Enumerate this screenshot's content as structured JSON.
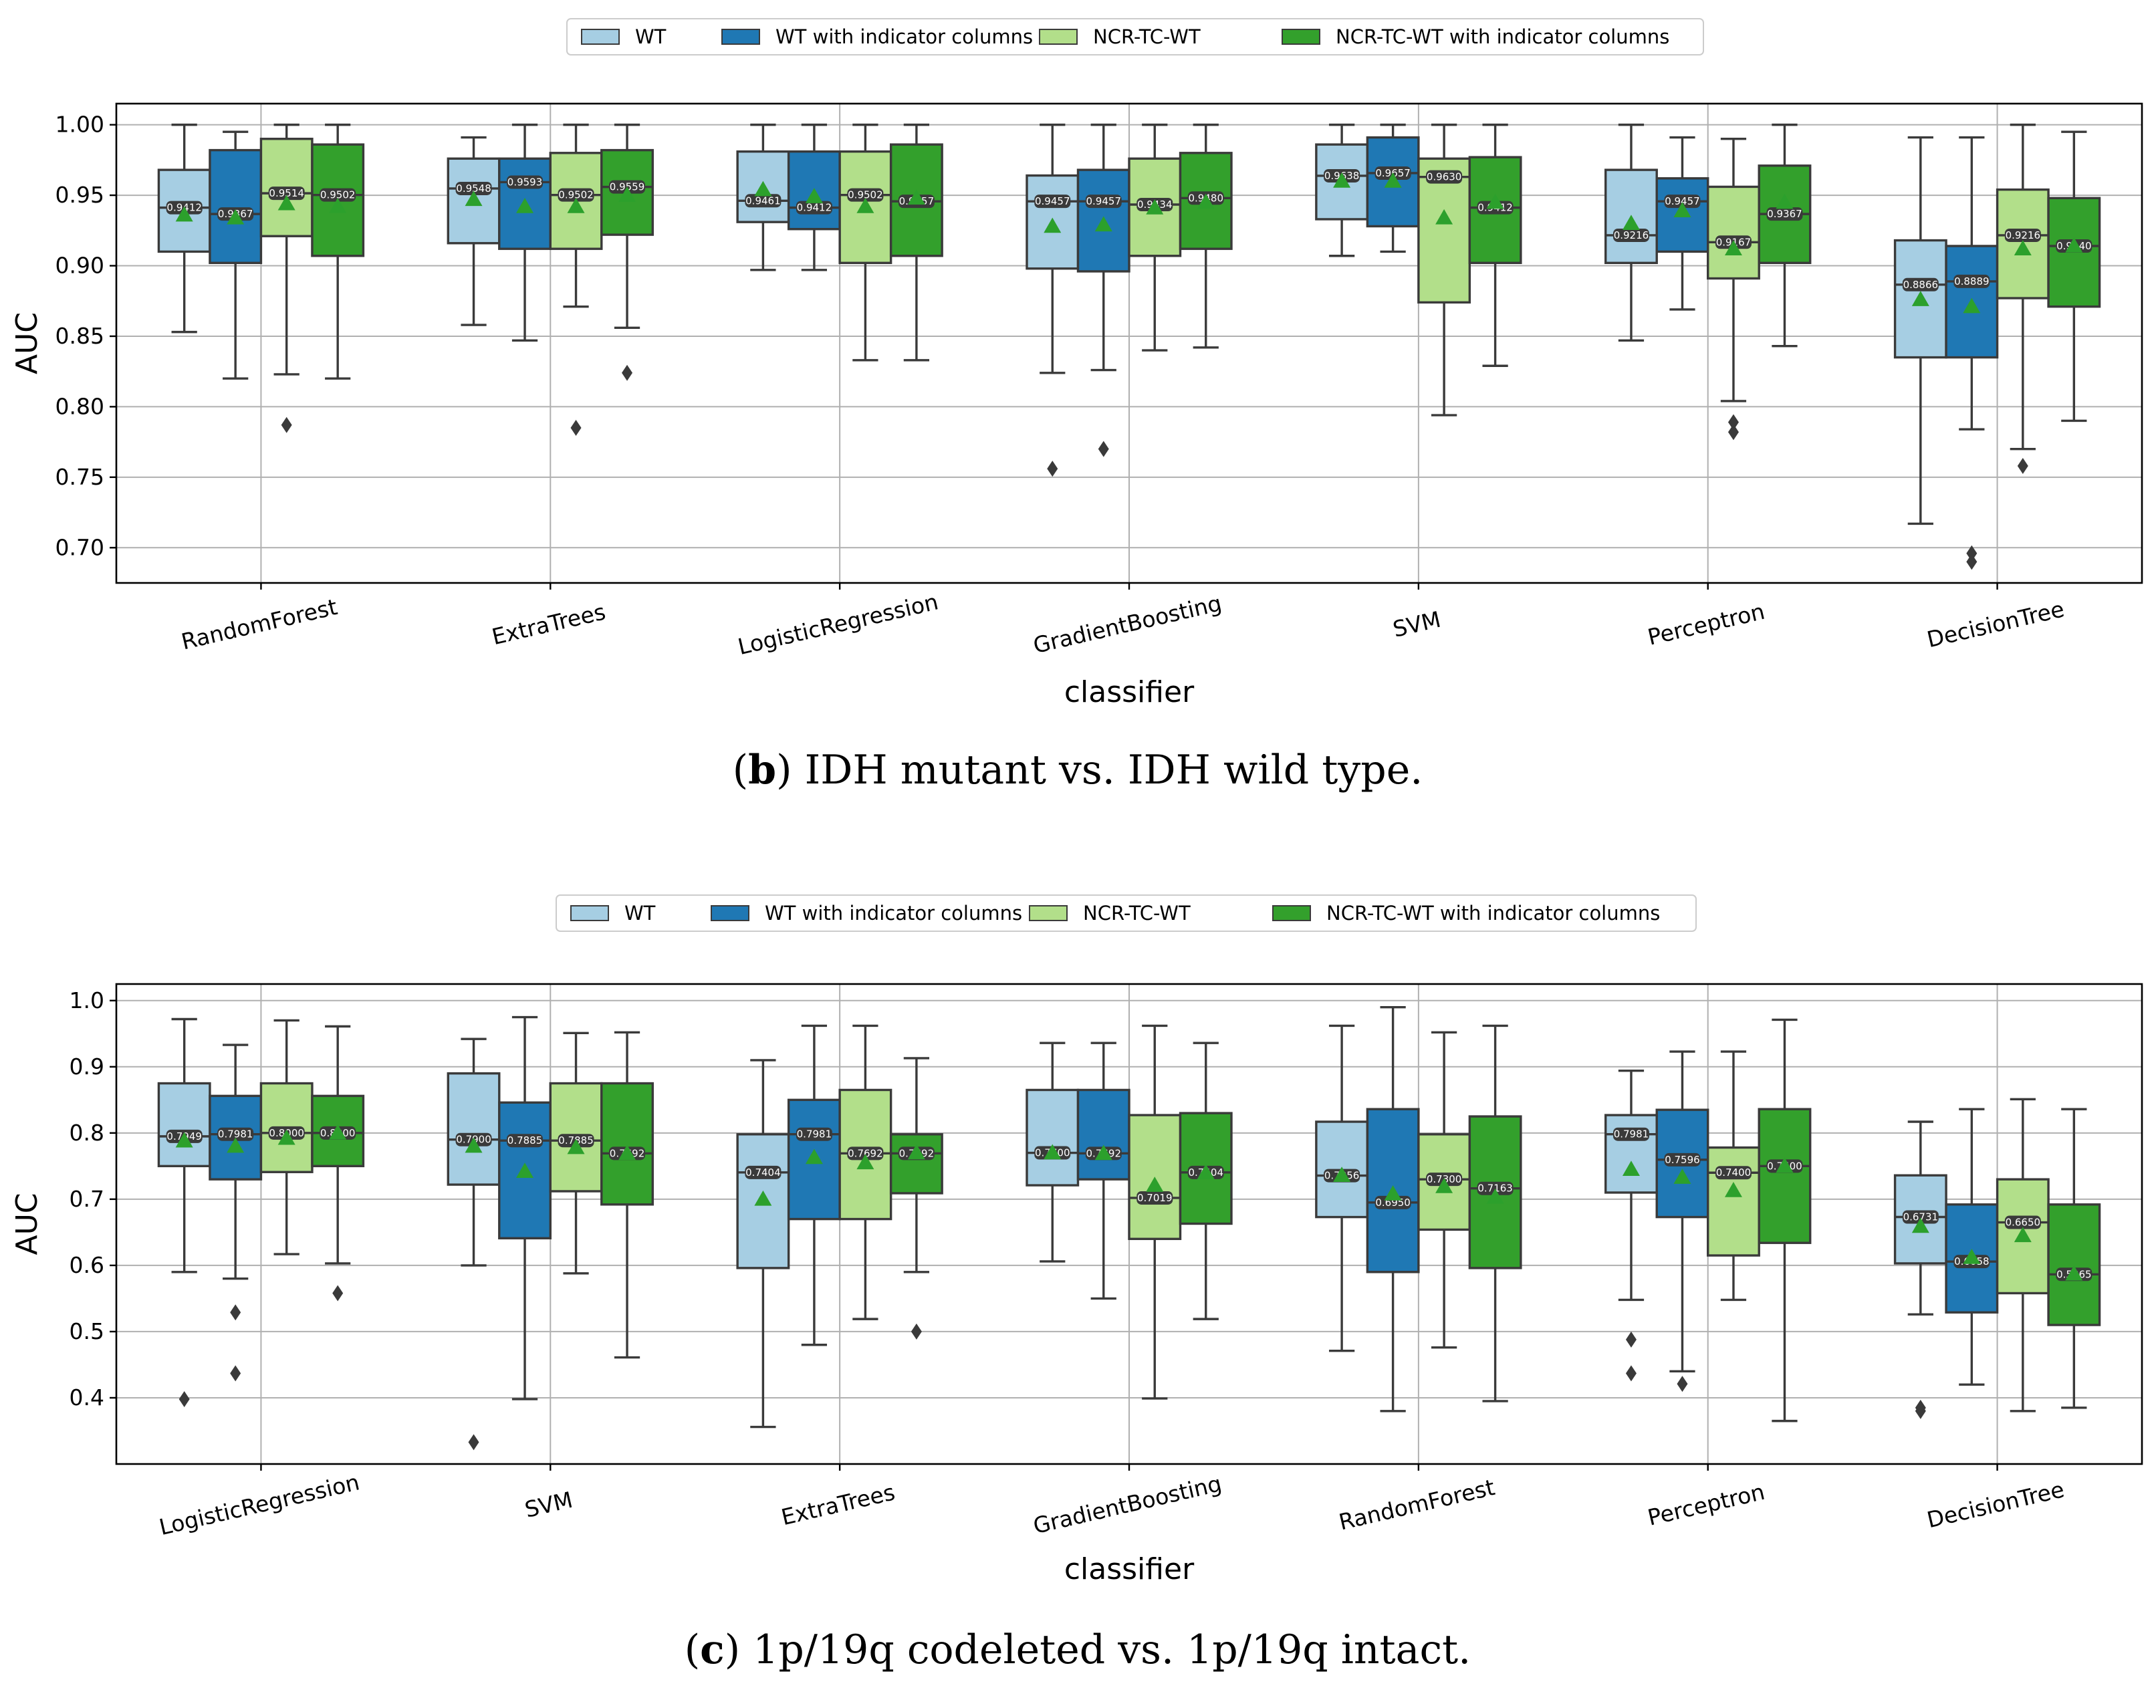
{
  "palette": {
    "WT": "#a6cee3",
    "WT with indicator columns": "#1f78b4",
    "NCR-TC-WT": "#b2df8a",
    "NCR-TC-WT with indicator columns": "#33a02c",
    "mean_marker": "#2ca02c",
    "line": "#3a3a3a"
  },
  "chart_data": [
    {
      "type": "box",
      "panel_label": "b",
      "caption": "IDH mutant vs. IDH wild type.",
      "legend": [
        "WT",
        "WT with indicator columns",
        "NCR-TC-WT",
        "NCR-TC-WT with indicator columns"
      ],
      "legend_position": "top-center",
      "xlabel": "classifier",
      "ylabel": "AUC",
      "ylim": [
        0.675,
        1.015
      ],
      "yticks": [
        "0.70",
        "0.75",
        "0.80",
        "0.85",
        "0.90",
        "0.95",
        "1.00"
      ],
      "grid": true,
      "categories": [
        "RandomForest",
        "ExtraTrees",
        "LogisticRegression",
        "GradientBoosting",
        "SVM",
        "Perceptron",
        "DecisionTree"
      ],
      "boxes": [
        [
          {
            "min": 0.853,
            "q1": 0.91,
            "median": 0.9412,
            "q3": 0.968,
            "max": 1.0,
            "mean": 0.936,
            "label": "0.9412",
            "outliers": []
          },
          {
            "min": 0.82,
            "q1": 0.902,
            "median": 0.9367,
            "q3": 0.982,
            "max": 0.995,
            "mean": 0.934,
            "label": "0.9367",
            "outliers": []
          },
          {
            "min": 0.823,
            "q1": 0.921,
            "median": 0.9514,
            "q3": 0.99,
            "max": 1.0,
            "mean": 0.944,
            "label": "0.9514",
            "outliers": [
              0.787
            ]
          },
          {
            "min": 0.82,
            "q1": 0.907,
            "median": 0.9502,
            "q3": 0.986,
            "max": 1.0,
            "mean": 0.942,
            "label": "0.9502",
            "outliers": []
          }
        ],
        [
          {
            "min": 0.858,
            "q1": 0.916,
            "median": 0.9548,
            "q3": 0.976,
            "max": 0.991,
            "mean": 0.947,
            "label": "0.9548",
            "outliers": []
          },
          {
            "min": 0.847,
            "q1": 0.912,
            "median": 0.9593,
            "q3": 0.976,
            "max": 1.0,
            "mean": 0.942,
            "label": "0.9593",
            "outliers": []
          },
          {
            "min": 0.871,
            "q1": 0.912,
            "median": 0.9502,
            "q3": 0.98,
            "max": 1.0,
            "mean": 0.942,
            "label": "0.9502",
            "outliers": [
              0.785
            ]
          },
          {
            "min": 0.856,
            "q1": 0.922,
            "median": 0.9559,
            "q3": 0.982,
            "max": 1.0,
            "mean": 0.95,
            "label": "0.9559",
            "outliers": [
              0.824
            ]
          }
        ],
        [
          {
            "min": 0.897,
            "q1": 0.931,
            "median": 0.9461,
            "q3": 0.981,
            "max": 1.0,
            "mean": 0.954,
            "label": "0.9461",
            "outliers": []
          },
          {
            "min": 0.897,
            "q1": 0.926,
            "median": 0.9412,
            "q3": 0.981,
            "max": 1.0,
            "mean": 0.949,
            "label": "0.9412",
            "outliers": []
          },
          {
            "min": 0.833,
            "q1": 0.902,
            "median": 0.9502,
            "q3": 0.981,
            "max": 1.0,
            "mean": 0.942,
            "label": "0.9502",
            "outliers": []
          },
          {
            "min": 0.833,
            "q1": 0.907,
            "median": 0.9457,
            "q3": 0.986,
            "max": 1.0,
            "mean": 0.948,
            "label": "0.9457",
            "outliers": []
          }
        ],
        [
          {
            "min": 0.824,
            "q1": 0.898,
            "median": 0.9457,
            "q3": 0.964,
            "max": 1.0,
            "mean": 0.928,
            "label": "0.9457",
            "outliers": [
              0.756
            ]
          },
          {
            "min": 0.826,
            "q1": 0.896,
            "median": 0.9457,
            "q3": 0.968,
            "max": 1.0,
            "mean": 0.929,
            "label": "0.9457",
            "outliers": [
              0.77
            ]
          },
          {
            "min": 0.84,
            "q1": 0.907,
            "median": 0.9434,
            "q3": 0.976,
            "max": 1.0,
            "mean": 0.941,
            "label": "0.9434",
            "outliers": []
          },
          {
            "min": 0.842,
            "q1": 0.912,
            "median": 0.948,
            "q3": 0.98,
            "max": 1.0,
            "mean": 0.945,
            "label": "0.9480",
            "outliers": []
          }
        ],
        [
          {
            "min": 0.907,
            "q1": 0.933,
            "median": 0.9638,
            "q3": 0.986,
            "max": 1.0,
            "mean": 0.96,
            "label": "0.9638",
            "outliers": []
          },
          {
            "min": 0.91,
            "q1": 0.928,
            "median": 0.9657,
            "q3": 0.991,
            "max": 1.0,
            "mean": 0.96,
            "label": "0.9657",
            "outliers": []
          },
          {
            "min": 0.794,
            "q1": 0.874,
            "median": 0.963,
            "q3": 0.976,
            "max": 1.0,
            "mean": 0.934,
            "label": "0.9630",
            "outliers": []
          },
          {
            "min": 0.829,
            "q1": 0.902,
            "median": 0.9412,
            "q3": 0.977,
            "max": 1.0,
            "mean": 0.945,
            "label": "0.9412",
            "outliers": []
          }
        ],
        [
          {
            "min": 0.847,
            "q1": 0.902,
            "median": 0.9216,
            "q3": 0.968,
            "max": 1.0,
            "mean": 0.93,
            "label": "0.9216",
            "outliers": []
          },
          {
            "min": 0.869,
            "q1": 0.91,
            "median": 0.9457,
            "q3": 0.962,
            "max": 0.991,
            "mean": 0.939,
            "label": "0.9457",
            "outliers": []
          },
          {
            "min": 0.804,
            "q1": 0.891,
            "median": 0.9167,
            "q3": 0.956,
            "max": 0.99,
            "mean": 0.912,
            "label": "0.9167",
            "outliers": [
              0.789,
              0.782
            ]
          },
          {
            "min": 0.843,
            "q1": 0.902,
            "median": 0.9367,
            "q3": 0.971,
            "max": 1.0,
            "mean": 0.945,
            "label": "0.9367",
            "outliers": []
          }
        ],
        [
          {
            "min": 0.717,
            "q1": 0.835,
            "median": 0.8866,
            "q3": 0.918,
            "max": 0.991,
            "mean": 0.876,
            "label": "0.8866",
            "outliers": []
          },
          {
            "min": 0.784,
            "q1": 0.835,
            "median": 0.8889,
            "q3": 0.914,
            "max": 0.991,
            "mean": 0.871,
            "label": "0.8889",
            "outliers": [
              0.696,
              0.69
            ]
          },
          {
            "min": 0.77,
            "q1": 0.877,
            "median": 0.9216,
            "q3": 0.954,
            "max": 1.0,
            "mean": 0.912,
            "label": "0.9216",
            "outliers": [
              0.758
            ]
          },
          {
            "min": 0.79,
            "q1": 0.871,
            "median": 0.914,
            "q3": 0.948,
            "max": 0.995,
            "mean": 0.914,
            "label": "0.9140",
            "outliers": []
          }
        ]
      ]
    },
    {
      "type": "box",
      "panel_label": "c",
      "caption": "1p/19q codeleted vs. 1p/19q intact.",
      "legend": [
        "WT",
        "WT with indicator columns",
        "NCR-TC-WT",
        "NCR-TC-WT with indicator columns"
      ],
      "legend_position": "top-center",
      "xlabel": "classifier",
      "ylabel": "AUC",
      "ylim": [
        0.3,
        1.025
      ],
      "yticks": [
        "0.4",
        "0.5",
        "0.6",
        "0.7",
        "0.8",
        "0.9",
        "1.0"
      ],
      "grid": true,
      "categories": [
        "LogisticRegression",
        "SVM",
        "ExtraTrees",
        "GradientBoosting",
        "RandomForest",
        "Perceptron",
        "DecisionTree"
      ],
      "boxes": [
        [
          {
            "min": 0.59,
            "q1": 0.75,
            "median": 0.7949,
            "q3": 0.875,
            "max": 0.972,
            "mean": 0.788,
            "label": "0.7949",
            "outliers": [
              0.398
            ]
          },
          {
            "min": 0.58,
            "q1": 0.73,
            "median": 0.7981,
            "q3": 0.856,
            "max": 0.933,
            "mean": 0.78,
            "label": "0.7981",
            "outliers": [
              0.529,
              0.437
            ]
          },
          {
            "min": 0.617,
            "q1": 0.741,
            "median": 0.8,
            "q3": 0.875,
            "max": 0.97,
            "mean": 0.792,
            "label": "0.8000",
            "outliers": []
          },
          {
            "min": 0.603,
            "q1": 0.75,
            "median": 0.8,
            "q3": 0.856,
            "max": 0.961,
            "mean": 0.8,
            "label": "0.8000",
            "outliers": [
              0.558
            ]
          }
        ],
        [
          {
            "min": 0.6,
            "q1": 0.722,
            "median": 0.79,
            "q3": 0.89,
            "max": 0.942,
            "mean": 0.78,
            "label": "0.7900",
            "outliers": [
              0.333
            ]
          },
          {
            "min": 0.398,
            "q1": 0.641,
            "median": 0.7885,
            "q3": 0.846,
            "max": 0.975,
            "mean": 0.742,
            "label": "0.7885",
            "outliers": []
          },
          {
            "min": 0.588,
            "q1": 0.712,
            "median": 0.7885,
            "q3": 0.875,
            "max": 0.951,
            "mean": 0.778,
            "label": "0.7885",
            "outliers": []
          },
          {
            "min": 0.461,
            "q1": 0.692,
            "median": 0.7692,
            "q3": 0.875,
            "max": 0.952,
            "mean": 0.769,
            "label": "0.7692",
            "outliers": []
          }
        ],
        [
          {
            "min": 0.356,
            "q1": 0.596,
            "median": 0.7404,
            "q3": 0.798,
            "max": 0.91,
            "mean": 0.7,
            "label": "0.7404",
            "outliers": []
          },
          {
            "min": 0.48,
            "q1": 0.67,
            "median": 0.7981,
            "q3": 0.85,
            "max": 0.962,
            "mean": 0.763,
            "label": "0.7981",
            "outliers": []
          },
          {
            "min": 0.519,
            "q1": 0.67,
            "median": 0.7692,
            "q3": 0.865,
            "max": 0.962,
            "mean": 0.755,
            "label": "0.7692",
            "outliers": []
          },
          {
            "min": 0.59,
            "q1": 0.709,
            "median": 0.7692,
            "q3": 0.798,
            "max": 0.913,
            "mean": 0.77,
            "label": "0.7692",
            "outliers": [
              0.5
            ]
          }
        ],
        [
          {
            "min": 0.606,
            "q1": 0.721,
            "median": 0.77,
            "q3": 0.865,
            "max": 0.936,
            "mean": 0.77,
            "label": "0.7700",
            "outliers": []
          },
          {
            "min": 0.55,
            "q1": 0.73,
            "median": 0.7692,
            "q3": 0.865,
            "max": 0.936,
            "mean": 0.769,
            "label": "0.7692",
            "outliers": []
          },
          {
            "min": 0.399,
            "q1": 0.64,
            "median": 0.7019,
            "q3": 0.827,
            "max": 0.962,
            "mean": 0.721,
            "label": "0.7019",
            "outliers": []
          },
          {
            "min": 0.519,
            "q1": 0.663,
            "median": 0.7404,
            "q3": 0.83,
            "max": 0.936,
            "mean": 0.74,
            "label": "0.7404",
            "outliers": []
          }
        ],
        [
          {
            "min": 0.471,
            "q1": 0.673,
            "median": 0.7356,
            "q3": 0.817,
            "max": 0.962,
            "mean": 0.736,
            "label": "0.7356",
            "outliers": []
          },
          {
            "min": 0.38,
            "q1": 0.59,
            "median": 0.695,
            "q3": 0.836,
            "max": 0.99,
            "mean": 0.708,
            "label": "0.6950",
            "outliers": []
          },
          {
            "min": 0.476,
            "q1": 0.654,
            "median": 0.73,
            "q3": 0.798,
            "max": 0.952,
            "mean": 0.719,
            "label": "0.7300",
            "outliers": []
          },
          {
            "min": 0.395,
            "q1": 0.596,
            "median": 0.7163,
            "q3": 0.825,
            "max": 0.962,
            "mean": 0.703,
            "label": "0.7163",
            "outliers": []
          }
        ],
        [
          {
            "min": 0.548,
            "q1": 0.71,
            "median": 0.7981,
            "q3": 0.827,
            "max": 0.894,
            "mean": 0.745,
            "label": "0.7981",
            "outliers": [
              0.488,
              0.437
            ]
          },
          {
            "min": 0.44,
            "q1": 0.673,
            "median": 0.7596,
            "q3": 0.835,
            "max": 0.923,
            "mean": 0.733,
            "label": "0.7596",
            "outliers": [
              0.421
            ]
          },
          {
            "min": 0.548,
            "q1": 0.615,
            "median": 0.74,
            "q3": 0.778,
            "max": 0.923,
            "mean": 0.713,
            "label": "0.7400",
            "outliers": []
          },
          {
            "min": 0.365,
            "q1": 0.634,
            "median": 0.75,
            "q3": 0.836,
            "max": 0.971,
            "mean": 0.75,
            "label": "0.7500",
            "outliers": []
          }
        ],
        [
          {
            "min": 0.526,
            "q1": 0.603,
            "median": 0.6731,
            "q3": 0.736,
            "max": 0.817,
            "mean": 0.659,
            "label": "0.6731",
            "outliers": [
              0.385,
              0.38
            ]
          },
          {
            "min": 0.42,
            "q1": 0.529,
            "median": 0.6058,
            "q3": 0.692,
            "max": 0.836,
            "mean": 0.612,
            "label": "0.6058",
            "outliers": []
          },
          {
            "min": 0.38,
            "q1": 0.558,
            "median": 0.665,
            "q3": 0.73,
            "max": 0.851,
            "mean": 0.645,
            "label": "0.6650",
            "outliers": []
          },
          {
            "min": 0.385,
            "q1": 0.51,
            "median": 0.5865,
            "q3": 0.692,
            "max": 0.836,
            "mean": 0.587,
            "label": "0.5865",
            "outliers": []
          }
        ]
      ]
    }
  ]
}
